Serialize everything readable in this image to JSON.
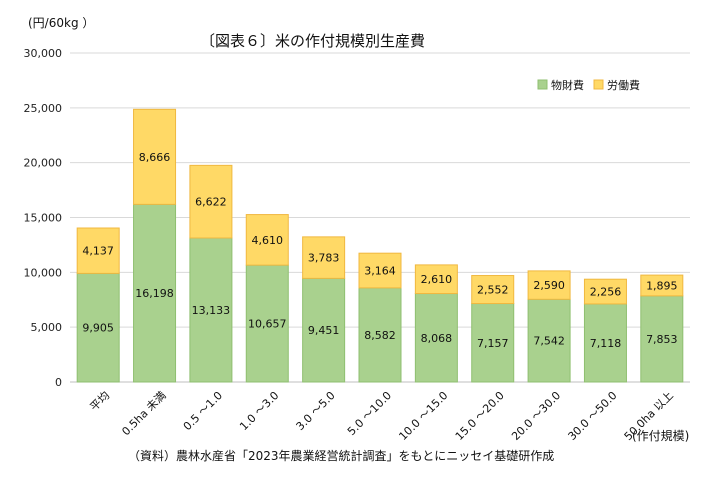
{
  "chart_data": {
    "type": "bar",
    "stacked": true,
    "title": "〔図表６〕米の作付規模別生産費",
    "ylabel": "(円/60kg ）",
    "xlabel": "(作付規模)",
    "source_note": "（資料）農林水産省「2023年農業経営統計調査」をもとにニッセイ基礎研作成",
    "ylim": [
      0,
      30000
    ],
    "yticks": [
      "0",
      "5,000",
      "10,000",
      "15,000",
      "20,000",
      "25,000",
      "30,000"
    ],
    "categories": [
      "平均",
      "0.5ha 未満",
      "0.5 ～1.0",
      "1.0 ～3.0",
      "3.0 ～5.0",
      "5.0 ～10.0",
      "10.0 ～15.0",
      "15.0 ～20.0",
      "20.0 ～30.0",
      "30.0 ～50.0",
      "50.0ha 以上"
    ],
    "series": [
      {
        "name": "物財費",
        "color": "#a9d18e",
        "values": [
          9905,
          16198,
          13133,
          10657,
          9451,
          8582,
          8068,
          7157,
          7542,
          7118,
          7853
        ],
        "labels": [
          "9,905",
          "16,198",
          "13,133",
          "10,657",
          "9,451",
          "8,582",
          "8,068",
          "7,157",
          "7,542",
          "7,118",
          "7,853"
        ]
      },
      {
        "name": "労働費",
        "color": "#ffd966",
        "values": [
          4137,
          8666,
          6622,
          4610,
          3783,
          3164,
          2610,
          2552,
          2590,
          2256,
          1895
        ],
        "labels": [
          "4,137",
          "8,666",
          "6,622",
          "4,610",
          "3,783",
          "3,164",
          "2,610",
          "2,552",
          "2,590",
          "2,256",
          "1,895"
        ]
      }
    ],
    "legend_position": "top-right",
    "grid": true
  }
}
